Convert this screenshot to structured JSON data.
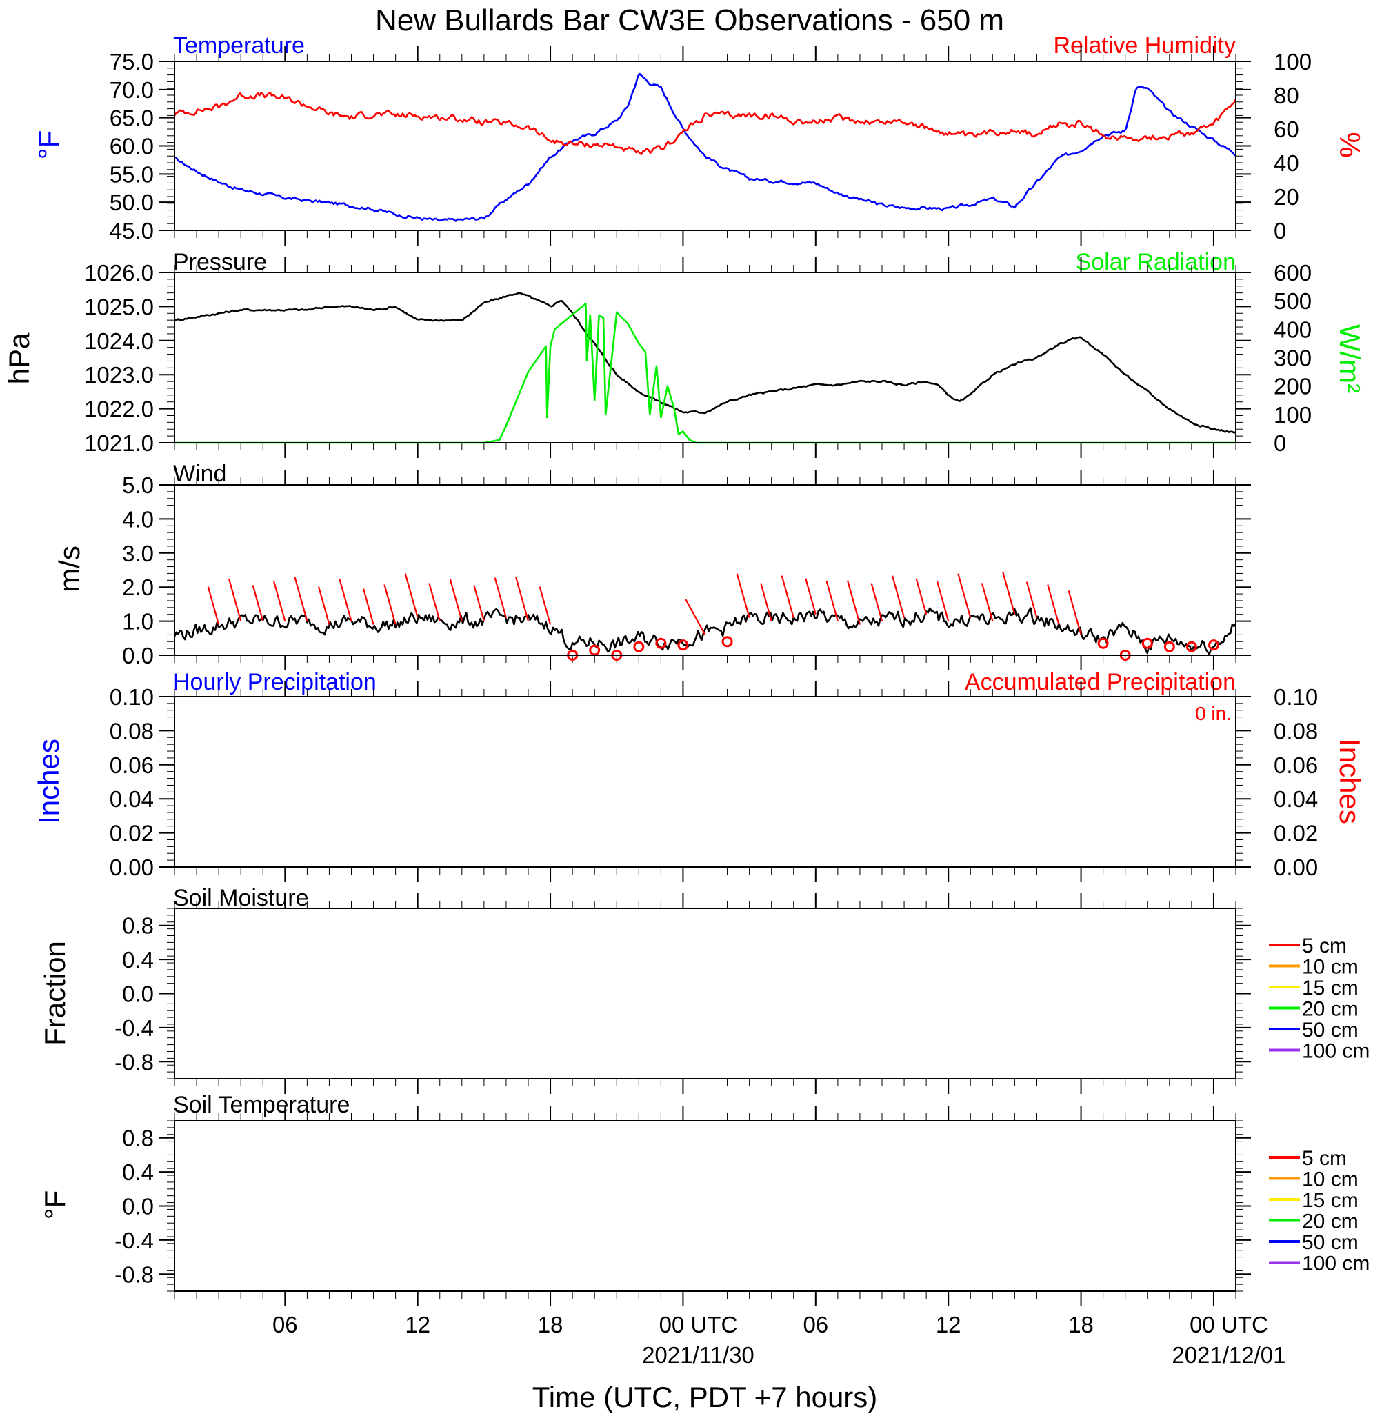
{
  "figure": {
    "title": "New Bullards Bar CW3E Observations - 650 m",
    "xlabel": "Time (UTC, PDT +7 hours)",
    "xticks": [
      {
        "hour": 6,
        "label": "06",
        "date": ""
      },
      {
        "hour": 12,
        "label": "12",
        "date": ""
      },
      {
        "hour": 18,
        "label": "18",
        "date": ""
      },
      {
        "hour": 24,
        "label": "00 UTC",
        "date": "2021/11/30"
      },
      {
        "hour": 30,
        "label": "06",
        "date": ""
      },
      {
        "hour": 36,
        "label": "12",
        "date": ""
      },
      {
        "hour": 42,
        "label": "18",
        "date": ""
      },
      {
        "hour": 48,
        "label": "00 UTC",
        "date": "2021/12/01"
      }
    ],
    "x_range_hours": [
      1,
      49
    ],
    "colors": {
      "blue": "#0000ff",
      "red": "#ff0000",
      "green": "#00ee00",
      "black": "#000000"
    }
  },
  "chart_data": [
    {
      "type": "line",
      "title_left": "Temperature",
      "title_right": "Relative Humidity",
      "ylabel_left": "°F",
      "ylabel_right": "%",
      "ylim_left": [
        45,
        75
      ],
      "ylim_right": [
        0,
        100
      ],
      "yticks_left": [
        "45.0",
        "50.0",
        "55.0",
        "60.0",
        "65.0",
        "70.0",
        "75.0"
      ],
      "yticks_right": [
        "0",
        "20",
        "40",
        "60",
        "80",
        "100"
      ],
      "series": [
        {
          "name": "Temperature",
          "axis": "left",
          "color": "#0000ff",
          "x": [
            1,
            2,
            3,
            4,
            5,
            6,
            7,
            8,
            9,
            10,
            11,
            12,
            13,
            14,
            15,
            16,
            17,
            18,
            19,
            20,
            21,
            21.5,
            22,
            22.5,
            23,
            24,
            25,
            26,
            27,
            28,
            29,
            30,
            31,
            32,
            33,
            34,
            35,
            36,
            37,
            38,
            39,
            40,
            41,
            42,
            43,
            44,
            44.5,
            45,
            46,
            47,
            48,
            49
          ],
          "y": [
            57.8,
            55.5,
            53.6,
            52.2,
            51.5,
            50.8,
            50.3,
            49.9,
            49.4,
            48.8,
            47.9,
            47.2,
            46.7,
            46.9,
            47.2,
            50.5,
            53.3,
            58.0,
            61.0,
            62.2,
            64.5,
            67.0,
            72.8,
            71.2,
            70.3,
            63.0,
            58.2,
            55.8,
            54.2,
            53.8,
            53.6,
            53.4,
            51.6,
            50.5,
            49.5,
            49.0,
            49.0,
            48.8,
            49.6,
            50.6,
            49.2,
            53.5,
            57.8,
            59.3,
            62.0,
            62.6,
            70.5,
            70.2,
            66.0,
            63.5,
            61.0,
            58.6
          ]
        },
        {
          "name": "Relative Humidity",
          "axis": "right",
          "color": "#ff0000",
          "x": [
            1,
            2,
            3,
            4,
            5,
            6,
            7,
            8,
            9,
            10,
            11,
            12,
            13,
            14,
            15,
            16,
            17,
            18,
            19,
            20,
            21,
            22,
            23,
            24,
            25,
            26,
            27,
            28,
            29,
            30,
            31,
            32,
            33,
            34,
            35,
            36,
            37,
            38,
            39,
            40,
            41,
            42,
            43,
            44,
            45,
            46,
            47,
            48,
            49
          ],
          "y": [
            69.0,
            71.0,
            73.0,
            80.0,
            80.0,
            78.0,
            74.0,
            69.0,
            67.0,
            69.0,
            68.0,
            68.0,
            67.0,
            66.0,
            64.0,
            63.0,
            61.0,
            53.0,
            51.0,
            51.0,
            50.0,
            45.0,
            48.0,
            58.0,
            68.0,
            68.0,
            68.0,
            68.0,
            65.0,
            64.0,
            66.0,
            65.0,
            64.0,
            65.0,
            60.0,
            58.0,
            55.0,
            58.0,
            60.0,
            56.0,
            63.0,
            63.0,
            56.0,
            55.0,
            55.0,
            56.0,
            58.0,
            62.0,
            77.0
          ]
        }
      ]
    },
    {
      "type": "line",
      "title_left": "Pressure",
      "title_right": "Solar Radiation",
      "ylabel_left": "hPa",
      "ylabel_right": "W/m²",
      "ylim_left": [
        1021,
        1026
      ],
      "ylim_right": [
        0,
        600
      ],
      "yticks_left": [
        "1021.0",
        "1022.0",
        "1023.0",
        "1024.0",
        "1025.0",
        "1026.0"
      ],
      "yticks_right": [
        "0",
        "100",
        "200",
        "300",
        "400",
        "500",
        "600"
      ],
      "series": [
        {
          "name": "Pressure",
          "axis": "left",
          "color": "#000000",
          "x": [
            1,
            2,
            3,
            4,
            5,
            6,
            7,
            8,
            9,
            10,
            11,
            12,
            13,
            14,
            15,
            16,
            16.5,
            17,
            18,
            18.5,
            19,
            20,
            21,
            22,
            23,
            24,
            25,
            26,
            27,
            28,
            29,
            30,
            31,
            32,
            33,
            34,
            35,
            35.5,
            36,
            36.5,
            37,
            38,
            39,
            40,
            41,
            42,
            43,
            44,
            45,
            46,
            47,
            48,
            49
          ],
          "y": [
            1024.6,
            1024.7,
            1024.8,
            1024.9,
            1024.9,
            1024.9,
            1024.9,
            1025.0,
            1025.0,
            1024.9,
            1025.0,
            1024.6,
            1024.6,
            1024.6,
            1025.1,
            1025.3,
            1025.4,
            1025.3,
            1025.0,
            1025.2,
            1024.8,
            1023.9,
            1023.0,
            1022.5,
            1022.2,
            1021.9,
            1021.9,
            1022.2,
            1022.4,
            1022.5,
            1022.6,
            1022.7,
            1022.7,
            1022.8,
            1022.8,
            1022.7,
            1022.8,
            1022.7,
            1022.4,
            1022.2,
            1022.4,
            1023.0,
            1023.3,
            1023.5,
            1023.9,
            1024.1,
            1023.6,
            1023.0,
            1022.5,
            1022.0,
            1021.6,
            1021.4,
            1021.3
          ]
        },
        {
          "name": "Solar Radiation",
          "axis": "right",
          "color": "#00ee00",
          "x": [
            1,
            15,
            15.7,
            16,
            17,
            17.8,
            17.85,
            18.0,
            18.2,
            19.6,
            19.65,
            19.8,
            20.0,
            20.2,
            20.4,
            20.5,
            21.0,
            21.5,
            22.0,
            22.3,
            22.5,
            22.8,
            23.0,
            23.3,
            23.6,
            23.8,
            24.0,
            24.3,
            24.6,
            49
          ],
          "y": [
            0,
            0,
            10,
            60,
            250,
            340,
            90,
            340,
            400,
            490,
            290,
            450,
            150,
            450,
            440,
            100,
            460,
            420,
            350,
            320,
            100,
            270,
            90,
            200,
            120,
            30,
            40,
            10,
            0,
            0
          ]
        }
      ]
    },
    {
      "type": "line",
      "title_left": "Wind",
      "ylabel_left": "m/s",
      "ylim_left": [
        0,
        5
      ],
      "yticks_left": [
        "0.0",
        "1.0",
        "2.0",
        "3.0",
        "4.0",
        "5.0"
      ],
      "series": [
        {
          "name": "Wind",
          "axis": "left",
          "color": "#000000",
          "x": [
            1,
            2,
            3,
            4,
            5,
            6,
            7,
            8,
            9,
            10,
            11,
            12,
            13,
            14,
            15,
            16,
            17,
            18,
            19,
            20,
            21,
            22,
            23,
            24,
            25,
            26,
            27,
            28,
            29,
            30,
            31,
            32,
            33,
            34,
            35,
            36,
            37,
            38,
            39,
            40,
            41,
            42,
            43,
            44,
            45,
            46,
            47,
            48,
            49
          ],
          "y": [
            0.6,
            0.7,
            0.9,
            1.0,
            1.0,
            1.0,
            1.0,
            0.9,
            1.0,
            0.9,
            0.9,
            1.1,
            1.0,
            1.0,
            1.0,
            1.1,
            1.0,
            0.9,
            0.3,
            0.4,
            0.3,
            0.5,
            0.4,
            0.5,
            0.6,
            0.8,
            1.1,
            1.0,
            1.1,
            1.2,
            1.0,
            0.9,
            1.0,
            1.1,
            1.2,
            1.0,
            1.1,
            1.0,
            1.2,
            1.1,
            0.9,
            0.6,
            0.5,
            0.8,
            0.3,
            0.5,
            0.3,
            0.3,
            0.9
          ]
        }
      ],
      "barbs_x": [
        3,
        4,
        5,
        6,
        7,
        8,
        9,
        10,
        11,
        12,
        13,
        14,
        15,
        16,
        17,
        18,
        25,
        27,
        28,
        29,
        30,
        31,
        32,
        33,
        34,
        35,
        36,
        37,
        38,
        39,
        40,
        41,
        42
      ],
      "calm_x": [
        19,
        20,
        21,
        22,
        23,
        24,
        26,
        43,
        44,
        45,
        46,
        47,
        48
      ],
      "calm_y": [
        0.0,
        0.15,
        0.0,
        0.25,
        0.35,
        0.3,
        0.4,
        0.35,
        0.0,
        0.35,
        0.25,
        0.25,
        0.3
      ]
    },
    {
      "type": "line",
      "title_left": "Hourly Precipitation",
      "title_right": "Accumulated Precipitation",
      "annotation": "0 in.",
      "ylabel_left": "Inches",
      "ylabel_right": "Inches",
      "ylim_left": [
        0,
        0.1
      ],
      "ylim_right": [
        0,
        0.1
      ],
      "yticks_left": [
        "0.00",
        "0.02",
        "0.04",
        "0.06",
        "0.08",
        "0.10"
      ],
      "yticks_right": [
        "0.00",
        "0.02",
        "0.04",
        "0.06",
        "0.08",
        "0.10"
      ],
      "series": [
        {
          "name": "Accumulated Precipitation",
          "axis": "right",
          "color": "#ff0000",
          "x": [
            1,
            49
          ],
          "y": [
            0,
            0
          ]
        }
      ]
    },
    {
      "type": "line",
      "title_left": "Soil Moisture",
      "ylabel_left": "Fraction",
      "ylim_left": [
        -1,
        1
      ],
      "yticks_left": [
        "-0.8",
        "-0.4",
        "0.0",
        "0.4",
        "0.8"
      ],
      "legend": [
        {
          "name": "5 cm",
          "color": "#ff0000"
        },
        {
          "name": "10 cm",
          "color": "#ff9900"
        },
        {
          "name": "15 cm",
          "color": "#ffee00"
        },
        {
          "name": "20 cm",
          "color": "#00ee00"
        },
        {
          "name": "50 cm",
          "color": "#0000ff"
        },
        {
          "name": "100 cm",
          "color": "#9933ee"
        }
      ],
      "series": []
    },
    {
      "type": "line",
      "title_left": "Soil Temperature",
      "ylabel_left": "°F",
      "ylim_left": [
        -1,
        1
      ],
      "yticks_left": [
        "-0.8",
        "-0.4",
        "0.0",
        "0.4",
        "0.8"
      ],
      "legend": [
        {
          "name": "5 cm",
          "color": "#ff0000"
        },
        {
          "name": "10 cm",
          "color": "#ff9900"
        },
        {
          "name": "15 cm",
          "color": "#ffee00"
        },
        {
          "name": "20 cm",
          "color": "#00ee00"
        },
        {
          "name": "50 cm",
          "color": "#0000ff"
        },
        {
          "name": "100 cm",
          "color": "#9933ee"
        }
      ],
      "series": []
    }
  ]
}
